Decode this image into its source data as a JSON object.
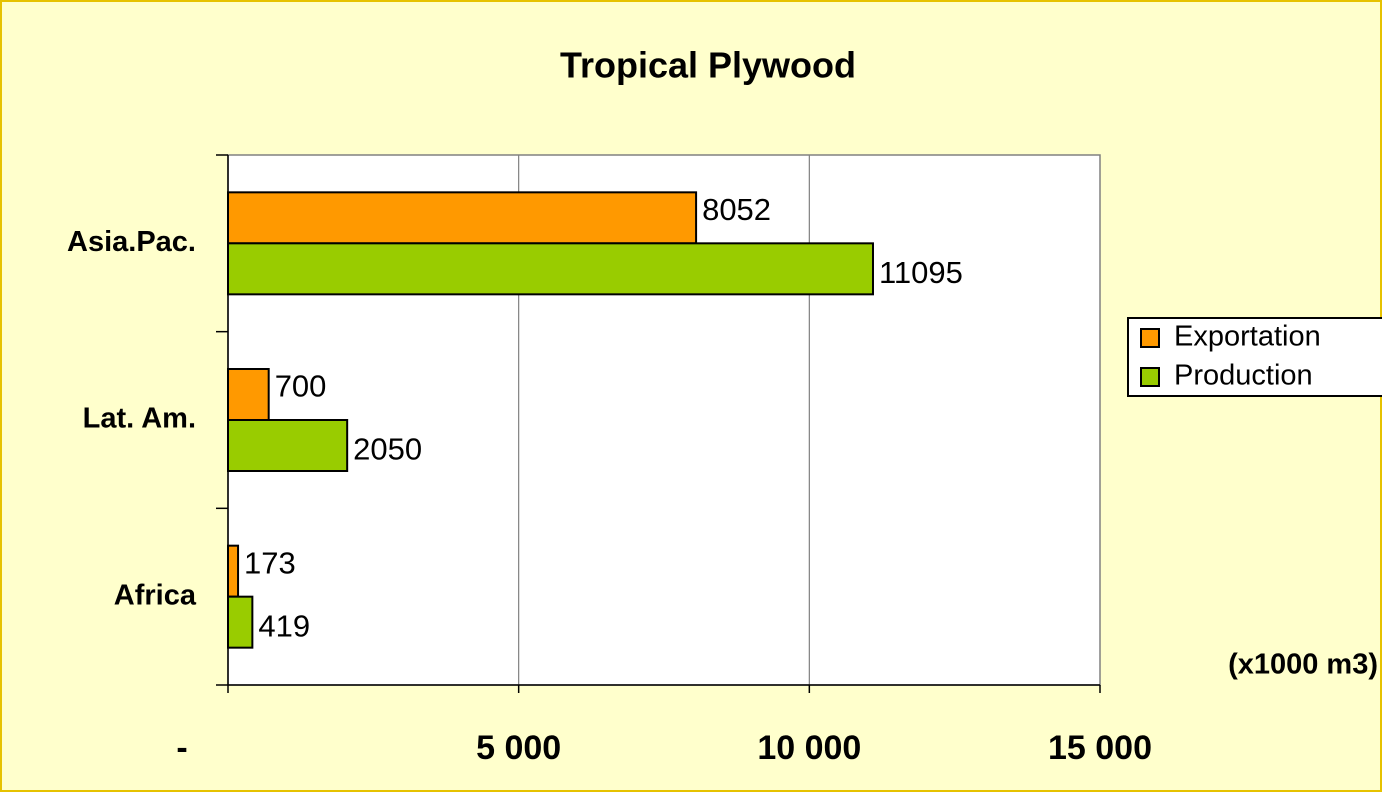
{
  "chart_data": {
    "type": "hbar",
    "title": "Tropical Plywood",
    "categories": [
      "Asia.Pac.",
      "Lat. Am.",
      "Africa"
    ],
    "series": [
      {
        "name": "Exportation",
        "color": "#ff9900",
        "values": [
          8052,
          700,
          173
        ]
      },
      {
        "name": "Production",
        "color": "#99cc00",
        "values": [
          11095,
          2050,
          419
        ]
      }
    ],
    "xlim": [
      0,
      15000
    ],
    "xticks": [
      {
        "value": 0,
        "label": "-"
      },
      {
        "value": 5000,
        "label": "5 000"
      },
      {
        "value": 10000,
        "label": "10 000"
      },
      {
        "value": 15000,
        "label": "15 000"
      }
    ],
    "grid": true,
    "unit_note": "(x1000 m3)",
    "legend": "right"
  }
}
